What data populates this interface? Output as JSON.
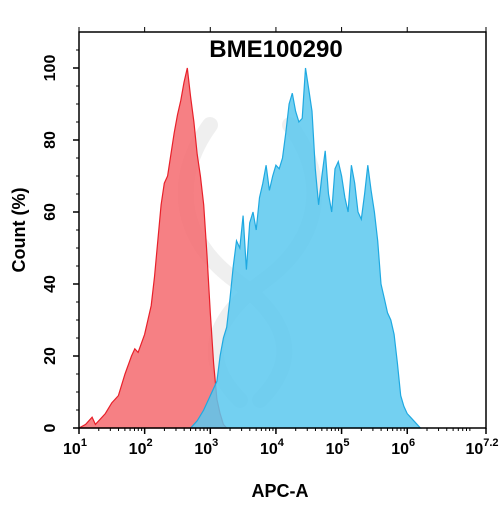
{
  "chart_data": {
    "type": "area",
    "title": "BME100290",
    "xlabel": "APC-A",
    "ylabel": "Count (%)",
    "x_scale": "log10",
    "xlim": [
      1,
      7.2
    ],
    "ylim": [
      0,
      110
    ],
    "x_ticks": [
      {
        "base": "10",
        "exp": "1"
      },
      {
        "base": "10",
        "exp": "2"
      },
      {
        "base": "10",
        "exp": "3"
      },
      {
        "base": "10",
        "exp": "4"
      },
      {
        "base": "10",
        "exp": "5"
      },
      {
        "base": "10",
        "exp": "6"
      },
      {
        "base": "10",
        "exp": "7.2"
      }
    ],
    "y_ticks": [
      "0",
      "20",
      "40",
      "60",
      "80",
      "100"
    ],
    "series": [
      {
        "color": "#f46a6e",
        "stroke": "#e8202a",
        "points": [
          [
            1.0,
            0
          ],
          [
            1.1,
            1
          ],
          [
            1.2,
            3
          ],
          [
            1.25,
            1
          ],
          [
            1.4,
            4
          ],
          [
            1.5,
            7
          ],
          [
            1.6,
            9
          ],
          [
            1.7,
            15
          ],
          [
            1.8,
            20
          ],
          [
            1.85,
            22
          ],
          [
            1.9,
            21
          ],
          [
            2.0,
            26
          ],
          [
            2.05,
            30
          ],
          [
            2.1,
            34
          ],
          [
            2.15,
            42
          ],
          [
            2.2,
            52
          ],
          [
            2.25,
            62
          ],
          [
            2.3,
            68
          ],
          [
            2.35,
            70
          ],
          [
            2.4,
            76
          ],
          [
            2.45,
            82
          ],
          [
            2.5,
            87
          ],
          [
            2.55,
            91
          ],
          [
            2.6,
            96
          ],
          [
            2.65,
            100
          ],
          [
            2.7,
            92
          ],
          [
            2.75,
            85
          ],
          [
            2.8,
            76
          ],
          [
            2.85,
            70
          ],
          [
            2.9,
            62
          ],
          [
            2.95,
            48
          ],
          [
            3.0,
            32
          ],
          [
            3.05,
            18
          ],
          [
            3.1,
            8
          ],
          [
            3.15,
            4
          ],
          [
            3.2,
            1
          ],
          [
            3.25,
            0
          ]
        ]
      },
      {
        "color": "#5bc8ef",
        "stroke": "#1fa9e1",
        "points": [
          [
            2.7,
            0
          ],
          [
            2.8,
            2
          ],
          [
            2.9,
            5
          ],
          [
            3.0,
            9
          ],
          [
            3.1,
            13
          ],
          [
            3.15,
            20
          ],
          [
            3.2,
            25
          ],
          [
            3.25,
            28
          ],
          [
            3.3,
            36
          ],
          [
            3.35,
            45
          ],
          [
            3.4,
            52
          ],
          [
            3.45,
            50
          ],
          [
            3.5,
            59
          ],
          [
            3.55,
            44
          ],
          [
            3.6,
            57
          ],
          [
            3.65,
            60
          ],
          [
            3.7,
            55
          ],
          [
            3.75,
            64
          ],
          [
            3.8,
            68
          ],
          [
            3.85,
            73
          ],
          [
            3.9,
            66
          ],
          [
            3.95,
            70
          ],
          [
            4.0,
            73
          ],
          [
            4.05,
            72
          ],
          [
            4.1,
            75
          ],
          [
            4.15,
            82
          ],
          [
            4.2,
            90
          ],
          [
            4.25,
            93
          ],
          [
            4.3,
            88
          ],
          [
            4.35,
            85
          ],
          [
            4.4,
            86
          ],
          [
            4.45,
            100
          ],
          [
            4.5,
            94
          ],
          [
            4.55,
            88
          ],
          [
            4.6,
            72
          ],
          [
            4.65,
            62
          ],
          [
            4.7,
            70
          ],
          [
            4.75,
            77
          ],
          [
            4.8,
            65
          ],
          [
            4.85,
            60
          ],
          [
            4.9,
            72
          ],
          [
            4.95,
            74
          ],
          [
            5.0,
            70
          ],
          [
            5.05,
            64
          ],
          [
            5.1,
            60
          ],
          [
            5.15,
            73
          ],
          [
            5.2,
            68
          ],
          [
            5.25,
            60
          ],
          [
            5.3,
            58
          ],
          [
            5.35,
            65
          ],
          [
            5.4,
            73
          ],
          [
            5.45,
            66
          ],
          [
            5.5,
            60
          ],
          [
            5.55,
            52
          ],
          [
            5.6,
            40
          ],
          [
            5.65,
            36
          ],
          [
            5.7,
            32
          ],
          [
            5.75,
            30
          ],
          [
            5.8,
            26
          ],
          [
            5.85,
            18
          ],
          [
            5.9,
            9
          ],
          [
            5.95,
            6
          ],
          [
            6.0,
            4
          ],
          [
            6.05,
            3
          ],
          [
            6.1,
            2
          ],
          [
            6.2,
            0
          ]
        ]
      }
    ],
    "grid": false,
    "legend": "none"
  }
}
